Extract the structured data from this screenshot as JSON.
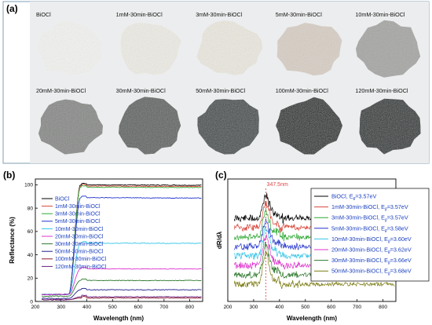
{
  "panel_a": {
    "label": "(a)",
    "samples": [
      {
        "label": "BiOCl",
        "color": "#f4f4f2"
      },
      {
        "label": "1mM-30min-BiOCl",
        "color": "#efede6"
      },
      {
        "label": "3mM-30min-BiOCl",
        "color": "#ece9e0"
      },
      {
        "label": "5mM-30min-BiOCl",
        "color": "#d9d0c6"
      },
      {
        "label": "10mM-30min-BiOCl",
        "color": "#a6a6a4"
      },
      {
        "label": "20mM-30min-BiOCl",
        "color": "#868886"
      },
      {
        "label": "30mM-30min-BiOCl",
        "color": "#5c605e"
      },
      {
        "label": "50mM-30min-BiOCl",
        "color": "#3f4747"
      },
      {
        "label": "100mM-30min-BiOCl",
        "color": "#1a2020"
      },
      {
        "label": "120mM-30min-BiOCl",
        "color": "#222a2a"
      }
    ]
  },
  "panel_b_label": "(b)",
  "panel_c_label": "(c)",
  "panel_c_annotation_peak": "347.5nm",
  "chart_data": [
    {
      "type": "line",
      "title": "",
      "xlabel": "Wavelength (nm)",
      "ylabel": "Reflectance (%)",
      "xlim": [
        200,
        850
      ],
      "ylim": [
        0,
        105
      ],
      "xticks": [
        200,
        300,
        400,
        500,
        600,
        700,
        800
      ],
      "yticks": [
        0,
        20,
        40,
        60,
        80,
        100
      ],
      "legend_position": "left",
      "series": [
        {
          "name": "BiOCl",
          "color": "#000000",
          "plateau": 100
        },
        {
          "name": "1mM-30min-BiOCl",
          "color": "#d8453a",
          "plateau": 99
        },
        {
          "name": "3mM-30min-BiOCl",
          "color": "#2fa832",
          "plateau": 98
        },
        {
          "name": "5mM-30min-BiOCl",
          "color": "#2233cc",
          "plateau": 89
        },
        {
          "name": "10mM-30min-BiOCl",
          "color": "#32c4e8",
          "plateau": 50
        },
        {
          "name": "20mM-30min-BiOCl",
          "color": "#dd33cc",
          "plateau": 28
        },
        {
          "name": "30mM-30min-BiOCl",
          "color": "#2f7a2f",
          "plateau": 18
        },
        {
          "name": "50mM-30min-BiOCl",
          "color": "#1e1e8c",
          "plateau": 10
        },
        {
          "name": "100mM-30min-BiOCl",
          "color": "#8b1a2b",
          "plateau": 3
        },
        {
          "name": "120mM-30min-BiOCl",
          "color": "#6a1f82",
          "plateau": 4
        }
      ]
    },
    {
      "type": "line",
      "title": "",
      "xlabel": "Wavelength (nm)",
      "ylabel": "dR/dλ",
      "xlim": [
        200,
        850
      ],
      "xticks": [
        200,
        300,
        400,
        500,
        600,
        700,
        800
      ],
      "peak_wavelength": 347.5,
      "legend_position": "right",
      "series": [
        {
          "name": "BiOCl, E_g=3.57eV",
          "prefix": "BiOCl, E",
          "sub": "g",
          "suffix": "=3.57eV",
          "color": "#000000",
          "offset": 7
        },
        {
          "name": "1mM-30min-BiOCl, E_g=3.57eV",
          "prefix": "1mM-30min-BiOCl, E",
          "sub": "g",
          "suffix": "=3.57eV",
          "color": "#d8453a",
          "offset": 6
        },
        {
          "name": "3mM-30min-BiOCl, E_g=3.57eV",
          "prefix": "3mM-30min-BiOCl, E",
          "sub": "g",
          "suffix": "=3.57eV",
          "color": "#2fa832",
          "offset": 5
        },
        {
          "name": "5mM-30min-BiOCl, E_g=3.58eV",
          "prefix": "5mM-30min-BiOCl, E",
          "sub": "g",
          "suffix": "=3.58eV",
          "color": "#2233cc",
          "offset": 4
        },
        {
          "name": "10mM-30min-BiOCl, E_g=3.60eV",
          "prefix": "10mM-30min-BiOCl, E",
          "sub": "g",
          "suffix": "=3.60eV",
          "color": "#32c4e8",
          "offset": 3
        },
        {
          "name": "20mM-30min-BiOCl, E_g=3.62eV",
          "prefix": "20mM-30min-BiOCl, E",
          "sub": "g",
          "suffix": "=3.62eV",
          "color": "#dd33cc",
          "offset": 2
        },
        {
          "name": "30mM-30min-BiOCl, E_g=3.66eV",
          "prefix": "30mM-30min-BiOCl, E",
          "sub": "g",
          "suffix": "=3.66eV",
          "color": "#2f7a2f",
          "offset": 1
        },
        {
          "name": "50mM-30min-BiOCl, E_g=3.68eV",
          "prefix": "50mM-30min-BiOCl, E",
          "sub": "g",
          "suffix": "=3.68eV",
          "color": "#7a7a10",
          "offset": 0
        }
      ]
    }
  ]
}
